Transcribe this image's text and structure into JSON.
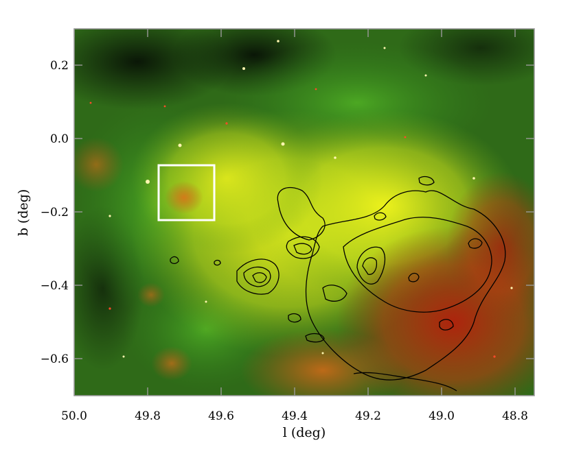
{
  "figure": {
    "xlabel": "l (deg)",
    "ylabel": "b (deg)",
    "x_ticks": [
      "50.0",
      "49.8",
      "49.6",
      "49.4",
      "49.2",
      "49.0",
      "48.8"
    ],
    "y_ticks": [
      "0.2",
      "0.0",
      "−0.2",
      "−0.4",
      "−0.6"
    ],
    "x_range": [
      50.0,
      48.75
    ],
    "y_range": [
      -0.7,
      0.3
    ],
    "image_description_colors": {
      "dark": "#0b1a08",
      "green": "#2f7d1c",
      "yellow": "#d9ea1e",
      "red": "#b3260e",
      "contour": "#000000",
      "inset_box": "#ffffff",
      "frame": "#9a9a9a"
    },
    "inset_box_l": [
      49.77,
      49.62
    ],
    "inset_box_b": [
      -0.22,
      -0.07
    ]
  }
}
